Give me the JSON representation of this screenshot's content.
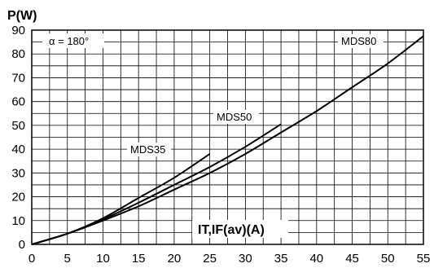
{
  "chart_data": {
    "type": "line",
    "ylabel": "P(W)",
    "xlabel": "IT,IF(av)(A)",
    "annotation": "α = 180°",
    "xlim": [
      0,
      55
    ],
    "ylim": [
      0,
      90
    ],
    "x_ticks": [
      0,
      5,
      10,
      15,
      20,
      25,
      30,
      35,
      40,
      45,
      50,
      55
    ],
    "y_ticks": [
      0,
      10,
      20,
      30,
      40,
      50,
      60,
      70,
      80,
      90
    ],
    "grid": true,
    "series": [
      {
        "name": "MDS35",
        "x": [
          0,
          5,
          10,
          15,
          20,
          25
        ],
        "y": [
          0,
          4.5,
          11,
          19.5,
          28,
          38
        ]
      },
      {
        "name": "MDS50",
        "x": [
          0,
          5,
          10,
          15,
          20,
          25,
          30,
          35
        ],
        "y": [
          0,
          4.5,
          10.5,
          17.5,
          25,
          32.5,
          41,
          50.5
        ]
      },
      {
        "name": "MDS80",
        "x": [
          0,
          5,
          10,
          15,
          20,
          25,
          30,
          35,
          40,
          45,
          50,
          55
        ],
        "y": [
          0,
          4.5,
          10,
          16,
          23,
          30,
          38,
          47,
          56,
          66,
          76,
          87.5
        ]
      }
    ]
  }
}
